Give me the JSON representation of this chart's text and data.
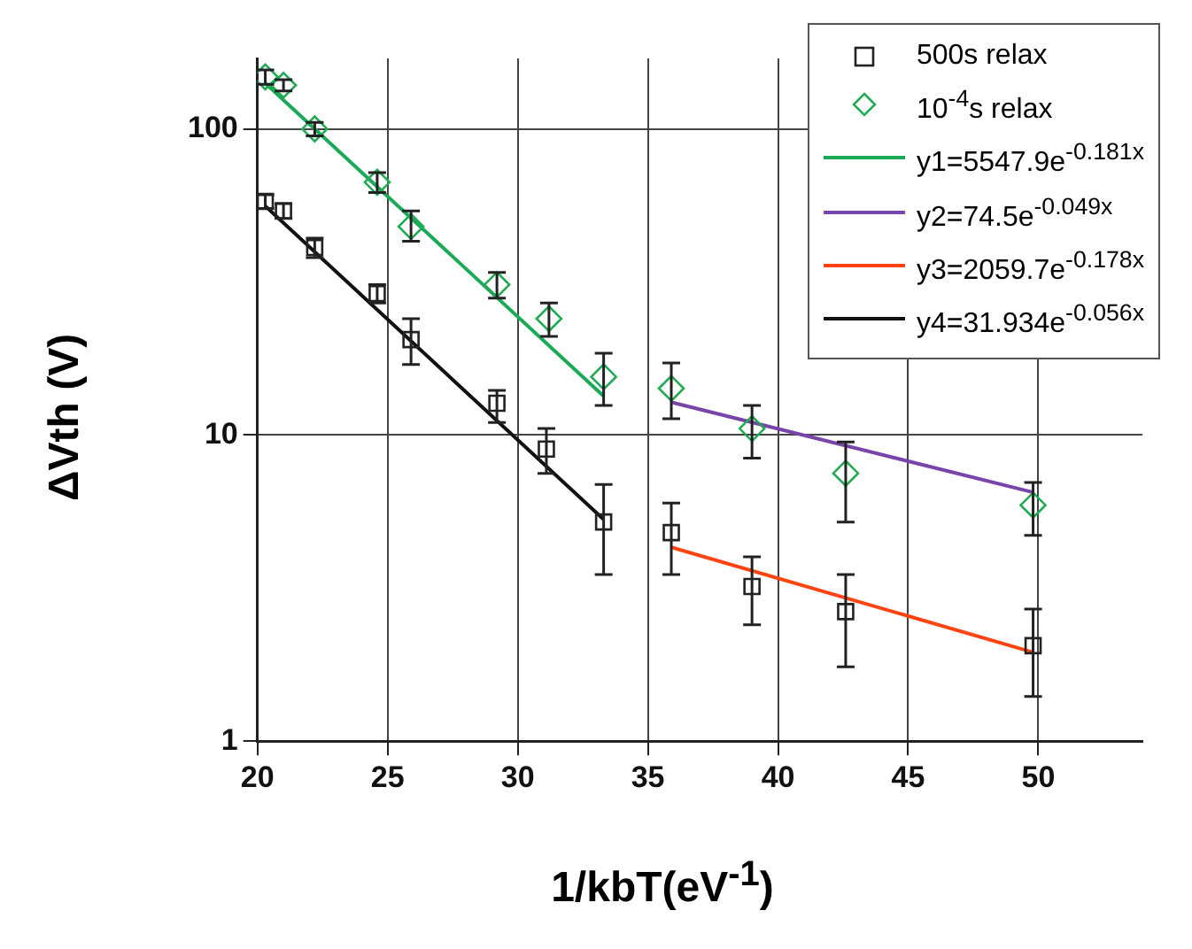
{
  "chart_data": {
    "type": "scatter",
    "xlabel": "1/kbT(eV$^{-1}$)",
    "ylabel": "ΔVth (V)",
    "log": "y",
    "xlim": [
      20,
      54
    ],
    "xticks": [
      20,
      25,
      30,
      35,
      40,
      45,
      50
    ],
    "ylim": [
      1,
      170
    ],
    "yticks": [
      1,
      10,
      100
    ],
    "grid": true,
    "legend": "top right",
    "series": [
      {
        "name": "500s relax",
        "marker": "square",
        "color": "#222222",
        "x": [
          20.3,
          21.0,
          22.2,
          24.6,
          25.9,
          29.2,
          31.1,
          33.3,
          35.9,
          39.0,
          42.6,
          49.8
        ],
        "values": [
          58,
          54,
          41,
          29,
          20.5,
          12.7,
          9,
          5.2,
          4.8,
          3.2,
          2.65,
          2.05
        ],
        "errors": [
          3,
          3,
          3,
          2,
          [
            17,
            24
          ],
          [
            11,
            14
          ],
          [
            7.5,
            10.5
          ],
          [
            3.5,
            6.9
          ],
          [
            3.5,
            6.0
          ],
          [
            2.4,
            4.0
          ],
          [
            1.75,
            3.5
          ],
          [
            1.4,
            2.7
          ]
        ]
      },
      {
        "name": "10$^{-4}$s relax",
        "marker": "diamond",
        "color": "#22aa55",
        "x": [
          20.3,
          21.0,
          22.2,
          24.6,
          25.9,
          29.2,
          31.2,
          33.3,
          35.9,
          39.0,
          42.6,
          49.8
        ],
        "values": [
          148,
          139,
          100,
          67,
          48,
          31,
          24,
          15.5,
          14.2,
          10.5,
          7.5,
          5.9
        ],
        "errors": [
          8,
          6,
          5,
          5,
          [
            43,
            54
          ],
          [
            28,
            34
          ],
          [
            21,
            27
          ],
          [
            12.5,
            18.5
          ],
          [
            11.3,
            17.2
          ],
          [
            8.4,
            12.5
          ],
          [
            5.2,
            9.5
          ],
          [
            4.7,
            7
          ]
        ]
      },
      {
        "name": "y1=5547.9e$^{-0.181x}$",
        "type": "line",
        "marker": "none",
        "color": "#1aaa55",
        "x": [
          20.3,
          33.3
        ],
        "values": [
          141,
          13.4
        ]
      },
      {
        "name": "y2=74.5e$^{-0.049x}$",
        "type": "line",
        "marker": "none",
        "color": "#7744aa",
        "x": [
          35.9,
          49.8
        ],
        "values": [
          12.8,
          6.5
        ]
      },
      {
        "name": "y3=2059.7e$^{-0.178x}$",
        "type": "line",
        "marker": "none",
        "color": "#ff4411",
        "x": [
          35.9,
          49.8
        ],
        "values": [
          4.3,
          1.95
        ]
      },
      {
        "name": "y4=31.934e$^{-0.056x}$",
        "type": "line",
        "marker": "none",
        "color": "#111111",
        "x": [
          20.3,
          33.3
        ],
        "values": [
          56,
          5.3
        ]
      }
    ]
  }
}
